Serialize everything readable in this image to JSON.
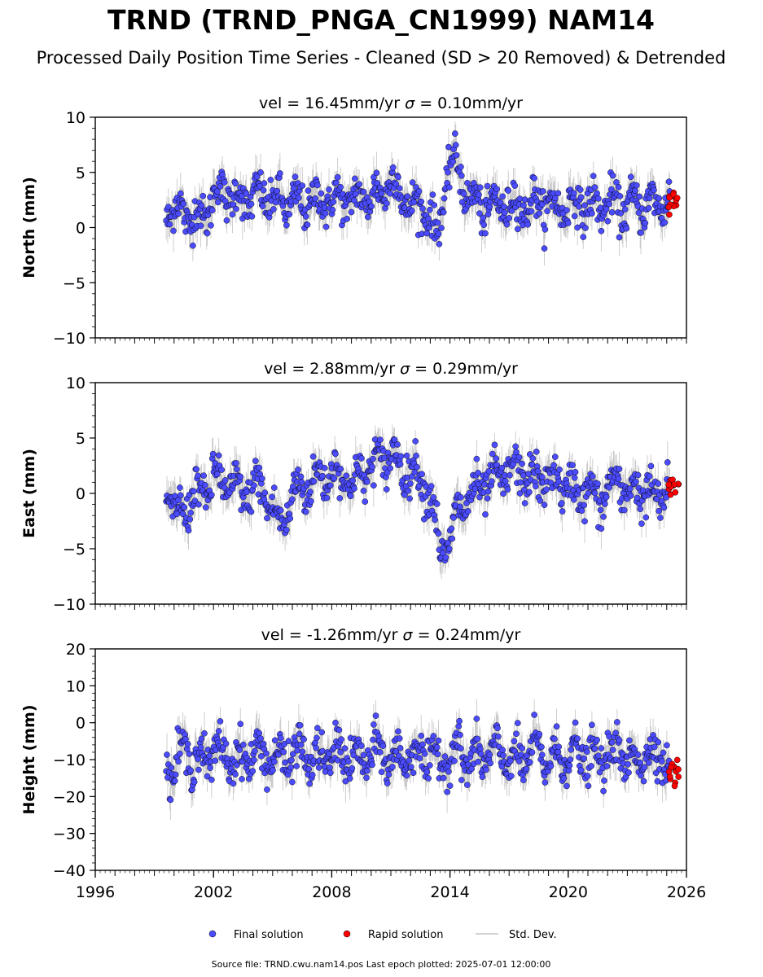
{
  "figure": {
    "title": "TRND (TRND_PNGA_CN1999) NAM14",
    "subtitle": "Processed Daily Position Time Series - Cleaned (SD > 20 Removed) & Detrended",
    "footer": "Source file: TRND.cwu.nam14.pos  Last epoch plotted: 2025-07-01 12:00:00"
  },
  "legend": {
    "placement": "bottom-center",
    "items": [
      {
        "label": "Final solution",
        "color": "#4b4bff",
        "marker": "circle"
      },
      {
        "label": "Rapid solution",
        "color": "#ff0000",
        "marker": "circle"
      },
      {
        "label": "Std. Dev.",
        "color": "#d3d3d3",
        "marker": "line"
      }
    ]
  },
  "colors": {
    "final": "#4b4bff",
    "rapid": "#ff0000",
    "stddev": "#b0b0b0",
    "edge": "#000000"
  },
  "chart_data": [
    {
      "type": "scatter",
      "title_vel": "vel = 16.45mm/yr",
      "title_sigma_sym": "σ",
      "title_sigma_val": " = 0.10mm/yr",
      "ylabel": "North (mm)",
      "xlabel": "",
      "xlim": [
        1996,
        2026
      ],
      "ylim": [
        -10,
        10
      ],
      "yticks": [
        10,
        5,
        0,
        -5,
        -10
      ],
      "yticklabels": [
        "10",
        "5",
        "0",
        "−5",
        "−10"
      ],
      "grid": false,
      "series": [
        {
          "name": "Final solution",
          "x": [
            1999.6,
            2000.0,
            2000.5,
            2001.0,
            2001.5,
            2002.0,
            2002.5,
            2003.0,
            2003.5,
            2004.0,
            2004.5,
            2005.0,
            2005.5,
            2006.0,
            2006.5,
            2007.0,
            2007.5,
            2008.0,
            2008.5,
            2009.0,
            2009.5,
            2010.0,
            2010.5,
            2011.0,
            2011.5,
            2012.0,
            2012.5,
            2013.0,
            2013.3,
            2013.6,
            2014.0,
            2014.5,
            2015.0,
            2015.5,
            2016.0,
            2016.5,
            2017.0,
            2017.5,
            2018.0,
            2018.5,
            2019.0,
            2019.5,
            2020.0,
            2020.5,
            2021.0,
            2021.5,
            2022.0,
            2022.5,
            2023.0,
            2023.5,
            2024.0,
            2024.5,
            2025.0
          ],
          "y": [
            1.5,
            1.8,
            1.2,
            1.0,
            0.8,
            3.0,
            3.2,
            2.8,
            2.5,
            2.7,
            2.9,
            2.6,
            2.2,
            2.4,
            2.1,
            2.5,
            2.3,
            2.6,
            2.4,
            2.5,
            2.7,
            2.8,
            3.0,
            4.5,
            3.0,
            2.0,
            1.8,
            1.5,
            -1.5,
            2.0,
            6.0,
            5.0,
            2.5,
            2.0,
            1.8,
            2.2,
            2.0,
            2.1,
            1.9,
            2.3,
            2.0,
            1.8,
            2.0,
            2.2,
            1.9,
            2.0,
            2.1,
            2.0,
            1.8,
            2.2,
            2.0,
            2.1,
            2.4
          ]
        },
        {
          "name": "Rapid solution",
          "x": [
            2025.2,
            2025.3,
            2025.4,
            2025.5
          ],
          "y": [
            1.5,
            2.5,
            3.0,
            2.0
          ]
        }
      ]
    },
    {
      "type": "scatter",
      "title_vel": "vel = 2.88mm/yr",
      "title_sigma_sym": "σ",
      "title_sigma_val": " = 0.29mm/yr",
      "ylabel": "East (mm)",
      "xlabel": "",
      "xlim": [
        1996,
        2026
      ],
      "ylim": [
        -10,
        10
      ],
      "yticks": [
        10,
        5,
        0,
        -5,
        -10
      ],
      "yticklabels": [
        "10",
        "5",
        "0",
        "−5",
        "−10"
      ],
      "grid": false,
      "series": [
        {
          "name": "Final solution",
          "x": [
            1999.6,
            2000.0,
            2000.5,
            2001.0,
            2001.5,
            2002.0,
            2002.5,
            2003.0,
            2003.5,
            2004.0,
            2004.5,
            2005.0,
            2005.3,
            2005.6,
            2006.0,
            2006.5,
            2007.0,
            2007.5,
            2008.0,
            2008.5,
            2009.0,
            2009.5,
            2010.0,
            2010.5,
            2011.0,
            2011.5,
            2012.0,
            2012.5,
            2013.0,
            2013.5,
            2014.0,
            2014.5,
            2015.0,
            2015.5,
            2016.0,
            2016.5,
            2017.0,
            2017.5,
            2018.0,
            2018.5,
            2019.0,
            2019.5,
            2020.0,
            2020.5,
            2021.0,
            2021.5,
            2022.0,
            2022.5,
            2023.0,
            2023.5,
            2024.0,
            2024.5,
            2025.0
          ],
          "y": [
            0.5,
            -1.5,
            -2.0,
            0.5,
            -0.5,
            2.0,
            0.5,
            1.0,
            -0.5,
            1.0,
            0.0,
            -1.0,
            -3.0,
            -2.5,
            0.0,
            0.5,
            1.0,
            1.5,
            2.0,
            1.5,
            1.0,
            1.5,
            2.5,
            3.0,
            3.5,
            2.5,
            2.0,
            1.5,
            0.0,
            -5.0,
            -4.5,
            -1.0,
            -0.5,
            0.5,
            1.0,
            1.5,
            2.0,
            2.0,
            1.5,
            1.0,
            1.5,
            1.0,
            0.5,
            0.0,
            0.5,
            -1.0,
            0.5,
            1.0,
            0.0,
            0.5,
            0.0,
            -0.5,
            0.5
          ]
        },
        {
          "name": "Rapid solution",
          "x": [
            2025.2,
            2025.3,
            2025.4,
            2025.5
          ],
          "y": [
            0.0,
            1.0,
            0.5,
            -0.3
          ]
        }
      ]
    },
    {
      "type": "scatter",
      "title_vel": "vel = -1.26mm/yr",
      "title_sigma_sym": "σ",
      "title_sigma_val": " = 0.24mm/yr",
      "ylabel": "Height (mm)",
      "xlabel": "",
      "xlim": [
        1996,
        2026
      ],
      "ylim": [
        -40,
        20
      ],
      "yticks": [
        20,
        10,
        0,
        -10,
        -20,
        -30,
        -40
      ],
      "yticklabels": [
        "20",
        "10",
        "0",
        "−10",
        "−20",
        "−30",
        "−40"
      ],
      "xticks": [
        1996,
        2002,
        2008,
        2014,
        2020,
        2026
      ],
      "xticklabels": [
        "1996",
        "2002",
        "2008",
        "2014",
        "2020",
        "2026"
      ],
      "grid": false,
      "series": [
        {
          "name": "Final solution",
          "x": [
            1999.6,
            2000.0,
            2000.5,
            2001.0,
            2001.5,
            2002.0,
            2002.5,
            2003.0,
            2003.5,
            2004.0,
            2004.5,
            2005.0,
            2005.5,
            2006.0,
            2006.5,
            2007.0,
            2007.5,
            2008.0,
            2008.5,
            2009.0,
            2009.5,
            2010.0,
            2010.5,
            2011.0,
            2011.5,
            2012.0,
            2012.5,
            2013.0,
            2013.5,
            2014.0,
            2014.5,
            2015.0,
            2015.5,
            2016.0,
            2016.5,
            2017.0,
            2017.5,
            2018.0,
            2018.5,
            2019.0,
            2019.5,
            2020.0,
            2020.5,
            2021.0,
            2021.5,
            2022.0,
            2022.5,
            2023.0,
            2023.5,
            2024.0,
            2024.5,
            2025.0
          ],
          "y": [
            -10,
            -15,
            -5,
            -12,
            -8,
            -10,
            -6,
            -12,
            -8,
            -10,
            -7,
            -11,
            -9,
            -10,
            -6,
            -12,
            -8,
            -10,
            -7,
            -11,
            -9,
            -10,
            -6,
            -12,
            -8,
            -10,
            -7,
            -11,
            -9,
            -10,
            -6,
            -12,
            -8,
            -10,
            -7,
            -11,
            -9,
            -10,
            -6,
            -12,
            -8,
            -10,
            -7,
            -11,
            -9,
            -10,
            -6,
            -12,
            -8,
            -10,
            -7,
            -11
          ]
        },
        {
          "name": "Rapid solution",
          "x": [
            2025.2,
            2025.3,
            2025.4,
            2025.5
          ],
          "y": [
            -8,
            -12,
            -16,
            -10
          ]
        }
      ]
    }
  ]
}
